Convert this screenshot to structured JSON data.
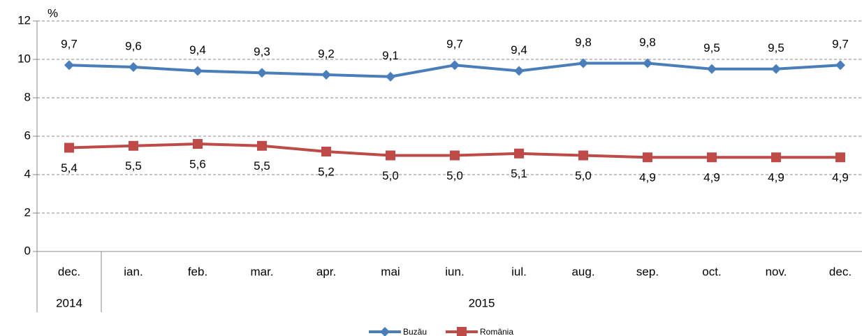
{
  "chart_data": {
    "type": "line",
    "y_label": "%",
    "categories": [
      "dec.",
      "ian.",
      "feb.",
      "mar.",
      "apr.",
      "mai",
      "iun.",
      "iul.",
      "aug.",
      "sep.",
      "oct.",
      "nov.",
      "dec."
    ],
    "x_groups": [
      {
        "label": "2014",
        "count": 1
      },
      {
        "label": "2015",
        "count": 12
      }
    ],
    "series": [
      {
        "name": "Buzău",
        "color": "#4a7ebb",
        "marker": "diamond",
        "label_position": "above",
        "values": [
          9.7,
          9.6,
          9.4,
          9.3,
          9.2,
          9.1,
          9.7,
          9.4,
          9.8,
          9.8,
          9.5,
          9.5,
          9.7
        ],
        "value_labels": [
          "9,7",
          "9,6",
          "9,4",
          "9,3",
          "9,2",
          "9,1",
          "9,7",
          "9,4",
          "9,8",
          "9,8",
          "9,5",
          "9,5",
          "9,7"
        ]
      },
      {
        "name": "România",
        "color": "#be4b48",
        "marker": "square",
        "label_position": "below",
        "values": [
          5.4,
          5.5,
          5.6,
          5.5,
          5.2,
          5.0,
          5.0,
          5.1,
          5.0,
          4.9,
          4.9,
          4.9,
          4.9
        ],
        "value_labels": [
          "5,4",
          "5,5",
          "5,6",
          "5,5",
          "5,2",
          "5,0",
          "5,0",
          "5,1",
          "5,0",
          "4,9",
          "4,9",
          "4,9",
          "4,9"
        ]
      }
    ],
    "ylim": [
      0,
      12
    ],
    "yticks": [
      0,
      2,
      4,
      6,
      8,
      10,
      12
    ],
    "grid": true,
    "legend": "bottom"
  }
}
